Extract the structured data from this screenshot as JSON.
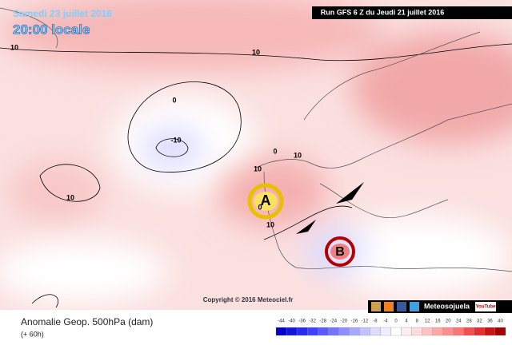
{
  "header": {
    "date": "Samedi 23 juillet 2016",
    "time": "20:00 locale",
    "run": "Run GFS 6 Z du Jeudi 21 juillet 2016"
  },
  "map": {
    "contour_labels": [
      "10",
      "10",
      "0",
      "-10",
      "0",
      "10",
      "10",
      "0",
      "10",
      "10"
    ],
    "high": "A",
    "low": "B",
    "copyright": "Copyright © 2016 Meteociel.fr"
  },
  "social": {
    "name": "Meteosojuela",
    "video": "YouTube"
  },
  "footer": {
    "title": "Anomalie Geop. 500hPa (dam)",
    "lead": "(+ 60h)"
  },
  "legend": {
    "labels": [
      "-44",
      "-40",
      "-36",
      "-32",
      "-28",
      "-24",
      "-20",
      "-16",
      "-12",
      "-8",
      "-4",
      "0",
      "4",
      "8",
      "12",
      "16",
      "20",
      "24",
      "28",
      "32",
      "36",
      "40"
    ],
    "colors": [
      "#0000c8",
      "#1414e0",
      "#2828f0",
      "#4040ff",
      "#5a5aff",
      "#7474ff",
      "#8e8eff",
      "#a8a8ff",
      "#c2c2ff",
      "#dcdcff",
      "#eeeeff",
      "#ffffff",
      "#ffeeee",
      "#ffdcdc",
      "#ffc2c2",
      "#ffa8a8",
      "#ff8e8e",
      "#ff7474",
      "#f05050",
      "#e03030",
      "#c81414",
      "#a00000"
    ]
  }
}
